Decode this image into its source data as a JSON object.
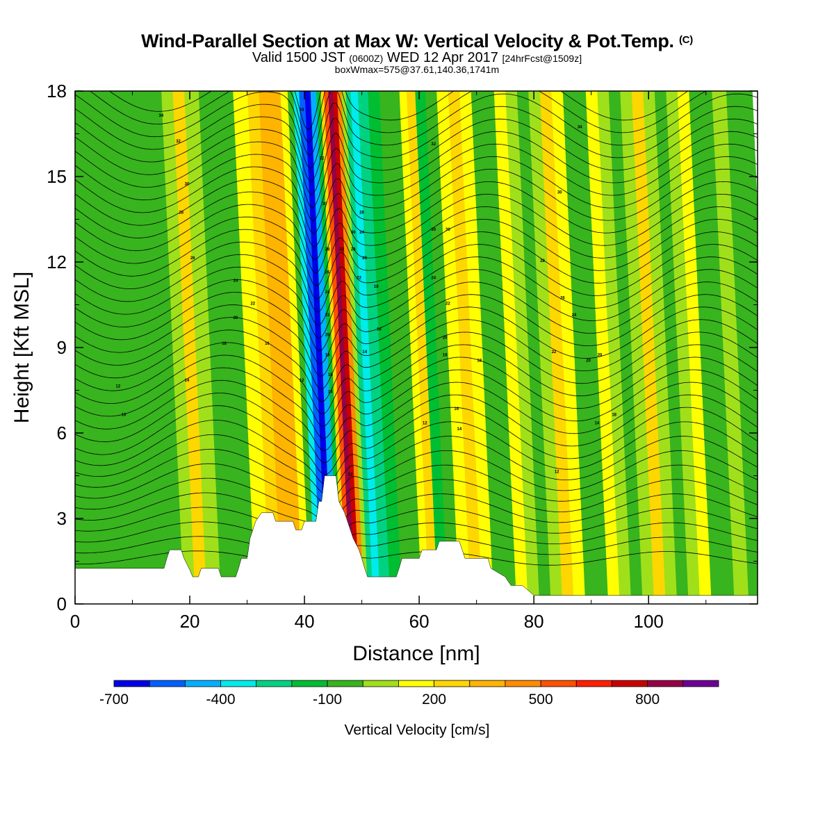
{
  "title": {
    "main": "Wind-Parallel Section at Max W: Vertical Velocity & Pot.Temp.",
    "copyright": "(C)",
    "valid_a": "Valid 1500 JST",
    "valid_utc": "(0600Z)",
    "valid_b": "WED 12 Apr 2017",
    "forecast": "[24hrFcst@1509z]",
    "box": "boxWmax=575@37.61,140.36,1741m"
  },
  "chart_data": {
    "type": "heatmap",
    "xlabel": "Distance [nm]",
    "ylabel": "Height [Kft MSL]",
    "xlim": [
      0,
      119
    ],
    "ylim": [
      0,
      18
    ],
    "xticks": [
      "0",
      "20",
      "40",
      "60",
      "80",
      "100"
    ],
    "yticks": [
      "0",
      "3",
      "6",
      "9",
      "12",
      "15",
      "18"
    ],
    "colorbar": {
      "title": "Vertical Velocity [cm/s]",
      "labels": [
        "-700",
        "-400",
        "-100",
        "200",
        "500",
        "800"
      ],
      "colors": [
        "#0000e6",
        "#0060ff",
        "#00b0ff",
        "#00ebeb",
        "#00d282",
        "#00be32",
        "#38b41e",
        "#a0e01a",
        "#ffff00",
        "#ffd700",
        "#ffb400",
        "#ff8c00",
        "#ff5000",
        "#ff1e00",
        "#c80000",
        "#960046",
        "#6e0096"
      ]
    },
    "velocity_bands": [
      {
        "x": 0,
        "w": -100
      },
      {
        "x": 3,
        "w": -130
      },
      {
        "x": 8,
        "w": -80
      },
      {
        "x": 12,
        "w": -100
      },
      {
        "x": 16,
        "w": -120
      },
      {
        "x": 18,
        "w": -60
      },
      {
        "x": 20,
        "w": 40
      },
      {
        "x": 22,
        "w": 150
      },
      {
        "x": 24,
        "w": 30
      },
      {
        "x": 27,
        "w": -130
      },
      {
        "x": 30,
        "w": -80
      },
      {
        "x": 33,
        "w": 50
      },
      {
        "x": 35,
        "w": 200
      },
      {
        "x": 37,
        "w": 320
      },
      {
        "x": 39,
        "w": 280
      },
      {
        "x": 40.5,
        "w": 100
      },
      {
        "x": 41.5,
        "w": -150
      },
      {
        "x": 42.5,
        "w": -450
      },
      {
        "x": 43.5,
        "w": -650
      },
      {
        "x": 44.5,
        "w": -700
      },
      {
        "x": 45.5,
        "w": -500
      },
      {
        "x": 46.5,
        "w": -200
      },
      {
        "x": 47,
        "w": 150
      },
      {
        "x": 47.7,
        "w": 500
      },
      {
        "x": 48.5,
        "w": 750
      },
      {
        "x": 49.3,
        "w": 700
      },
      {
        "x": 50,
        "w": 400
      },
      {
        "x": 50.8,
        "w": 0
      },
      {
        "x": 51.5,
        "w": -300
      },
      {
        "x": 52.5,
        "w": -400
      },
      {
        "x": 54,
        "w": -300
      },
      {
        "x": 56,
        "w": -220
      },
      {
        "x": 58,
        "w": -130
      },
      {
        "x": 60,
        "w": -60
      },
      {
        "x": 61,
        "w": 100
      },
      {
        "x": 62.5,
        "w": 160
      },
      {
        "x": 64,
        "w": -180
      },
      {
        "x": 66,
        "w": -130
      },
      {
        "x": 68,
        "w": 60
      },
      {
        "x": 70,
        "w": 200
      },
      {
        "x": 72,
        "w": 80
      },
      {
        "x": 74,
        "w": -140
      },
      {
        "x": 76,
        "w": -60
      },
      {
        "x": 78,
        "w": 120
      },
      {
        "x": 80,
        "w": 20
      },
      {
        "x": 82,
        "w": -120
      },
      {
        "x": 84,
        "w": 30
      },
      {
        "x": 86,
        "w": 180
      },
      {
        "x": 88,
        "w": 60
      },
      {
        "x": 90,
        "w": -130
      },
      {
        "x": 92,
        "w": -60
      },
      {
        "x": 94,
        "w": 110
      },
      {
        "x": 96,
        "w": -30
      },
      {
        "x": 98,
        "w": -140
      },
      {
        "x": 100,
        "w": -40
      },
      {
        "x": 102,
        "w": 150
      },
      {
        "x": 104,
        "w": 20
      },
      {
        "x": 106,
        "w": -110
      },
      {
        "x": 108,
        "w": -40
      },
      {
        "x": 110,
        "w": 80
      },
      {
        "x": 112,
        "w": -60
      },
      {
        "x": 114,
        "w": -140
      },
      {
        "x": 116,
        "w": 40
      },
      {
        "x": 119,
        "w": -60
      }
    ],
    "terrain_kft": [
      {
        "x": 0,
        "h": 1.25
      },
      {
        "x": 15.5,
        "h": 1.25
      },
      {
        "x": 16,
        "h": 1.6
      },
      {
        "x": 16.5,
        "h": 1.9
      },
      {
        "x": 18.5,
        "h": 1.9
      },
      {
        "x": 19,
        "h": 1.6
      },
      {
        "x": 20,
        "h": 1.2
      },
      {
        "x": 20.5,
        "h": 0.95
      },
      {
        "x": 21.5,
        "h": 0.95
      },
      {
        "x": 22,
        "h": 1.25
      },
      {
        "x": 25,
        "h": 1.25
      },
      {
        "x": 25.5,
        "h": 0.95
      },
      {
        "x": 28,
        "h": 0.95
      },
      {
        "x": 28.5,
        "h": 1.25
      },
      {
        "x": 29,
        "h": 1.6
      },
      {
        "x": 30,
        "h": 1.6
      },
      {
        "x": 30.5,
        "h": 2.3
      },
      {
        "x": 31,
        "h": 2.6
      },
      {
        "x": 31.5,
        "h": 2.9
      },
      {
        "x": 32.5,
        "h": 3.2
      },
      {
        "x": 34.5,
        "h": 3.2
      },
      {
        "x": 35,
        "h": 2.9
      },
      {
        "x": 38,
        "h": 2.9
      },
      {
        "x": 38.5,
        "h": 2.6
      },
      {
        "x": 39.5,
        "h": 2.6
      },
      {
        "x": 40,
        "h": 2.9
      },
      {
        "x": 42,
        "h": 2.9
      },
      {
        "x": 42.5,
        "h": 3.6
      },
      {
        "x": 43,
        "h": 3.6
      },
      {
        "x": 43.5,
        "h": 4.5
      },
      {
        "x": 45.5,
        "h": 4.5
      },
      {
        "x": 46,
        "h": 3.6
      },
      {
        "x": 47,
        "h": 3.2
      },
      {
        "x": 47.5,
        "h": 2.9
      },
      {
        "x": 48.5,
        "h": 2.3
      },
      {
        "x": 49.5,
        "h": 1.9
      },
      {
        "x": 50,
        "h": 1.6
      },
      {
        "x": 50.5,
        "h": 1.25
      },
      {
        "x": 51,
        "h": 0.95
      },
      {
        "x": 56,
        "h": 0.95
      },
      {
        "x": 56.5,
        "h": 1.25
      },
      {
        "x": 57,
        "h": 1.6
      },
      {
        "x": 60,
        "h": 1.6
      },
      {
        "x": 60.5,
        "h": 1.9
      },
      {
        "x": 63,
        "h": 1.9
      },
      {
        "x": 63.5,
        "h": 2.2
      },
      {
        "x": 67,
        "h": 2.2
      },
      {
        "x": 67.5,
        "h": 1.9
      },
      {
        "x": 68,
        "h": 1.6
      },
      {
        "x": 72,
        "h": 1.6
      },
      {
        "x": 72.5,
        "h": 1.25
      },
      {
        "x": 75,
        "h": 0.95
      },
      {
        "x": 76,
        "h": 0.65
      },
      {
        "x": 78,
        "h": 0.65
      },
      {
        "x": 80,
        "h": 0.3
      },
      {
        "x": 119,
        "h": 0.3
      }
    ],
    "contour_labels": [
      {
        "x": 15,
        "h": 17.1,
        "t": "34"
      },
      {
        "x": 18,
        "h": 16.2,
        "t": "32"
      },
      {
        "x": 19.5,
        "h": 14.7,
        "t": "30"
      },
      {
        "x": 18.5,
        "h": 13.7,
        "t": "28"
      },
      {
        "x": 20.5,
        "h": 12.1,
        "t": "26"
      },
      {
        "x": 28,
        "h": 11.3,
        "t": "24"
      },
      {
        "x": 31,
        "h": 10.5,
        "t": "22"
      },
      {
        "x": 28,
        "h": 10.0,
        "t": "20"
      },
      {
        "x": 26,
        "h": 9.1,
        "t": "18"
      },
      {
        "x": 33.5,
        "h": 9.1,
        "t": "16"
      },
      {
        "x": 19.5,
        "h": 7.8,
        "t": "14"
      },
      {
        "x": 7.5,
        "h": 7.6,
        "t": "12"
      },
      {
        "x": 8.5,
        "h": 6.6,
        "t": "10"
      },
      {
        "x": 39.5,
        "h": 7.8,
        "t": "12"
      },
      {
        "x": 39.5,
        "h": 17.3,
        "t": "34"
      },
      {
        "x": 43,
        "h": 15.6,
        "t": "32"
      },
      {
        "x": 43.5,
        "h": 14.0,
        "t": "30"
      },
      {
        "x": 44,
        "h": 12.4,
        "t": "28"
      },
      {
        "x": 44,
        "h": 11.6,
        "t": "26"
      },
      {
        "x": 44,
        "h": 10.9,
        "t": "24"
      },
      {
        "x": 44,
        "h": 10.1,
        "t": "22"
      },
      {
        "x": 44,
        "h": 9.4,
        "t": "20"
      },
      {
        "x": 44,
        "h": 8.7,
        "t": "18"
      },
      {
        "x": 44.5,
        "h": 8.0,
        "t": "16"
      },
      {
        "x": 44.5,
        "h": 7.4,
        "t": "14"
      },
      {
        "x": 46.5,
        "h": 12.4,
        "t": "32"
      },
      {
        "x": 48.5,
        "h": 13.0,
        "t": "30"
      },
      {
        "x": 48.5,
        "h": 12.4,
        "t": "28"
      },
      {
        "x": 50,
        "h": 13.7,
        "t": "26"
      },
      {
        "x": 50,
        "h": 13.0,
        "t": "24"
      },
      {
        "x": 50.5,
        "h": 12.1,
        "t": "20"
      },
      {
        "x": 49.5,
        "h": 11.4,
        "t": "22"
      },
      {
        "x": 52.5,
        "h": 11.1,
        "t": "18"
      },
      {
        "x": 53,
        "h": 9.6,
        "t": "16"
      },
      {
        "x": 50.5,
        "h": 8.8,
        "t": "14"
      },
      {
        "x": 48,
        "h": 4.5,
        "t": "12"
      },
      {
        "x": 62.5,
        "h": 16.1,
        "t": "32"
      },
      {
        "x": 62.5,
        "h": 13.1,
        "t": "30"
      },
      {
        "x": 65,
        "h": 13.1,
        "t": "30"
      },
      {
        "x": 62.5,
        "h": 11.4,
        "t": "24"
      },
      {
        "x": 65,
        "h": 10.5,
        "t": "22"
      },
      {
        "x": 64.5,
        "h": 9.3,
        "t": "20"
      },
      {
        "x": 64.5,
        "h": 8.7,
        "t": "16"
      },
      {
        "x": 70.5,
        "h": 8.5,
        "t": "18"
      },
      {
        "x": 66.5,
        "h": 6.8,
        "t": "16"
      },
      {
        "x": 67,
        "h": 6.1,
        "t": "14"
      },
      {
        "x": 61,
        "h": 6.3,
        "t": "12"
      },
      {
        "x": 88,
        "h": 16.7,
        "t": "34"
      },
      {
        "x": 84.5,
        "h": 14.4,
        "t": "30"
      },
      {
        "x": 81.5,
        "h": 12.0,
        "t": "28"
      },
      {
        "x": 85,
        "h": 10.7,
        "t": "26"
      },
      {
        "x": 87,
        "h": 10.1,
        "t": "24"
      },
      {
        "x": 83.5,
        "h": 8.8,
        "t": "22"
      },
      {
        "x": 89.5,
        "h": 8.5,
        "t": "20"
      },
      {
        "x": 91.5,
        "h": 8.7,
        "t": "20"
      },
      {
        "x": 94,
        "h": 6.6,
        "t": "18"
      },
      {
        "x": 91,
        "h": 6.3,
        "t": "14"
      },
      {
        "x": 84,
        "h": 4.6,
        "t": "12"
      }
    ]
  }
}
